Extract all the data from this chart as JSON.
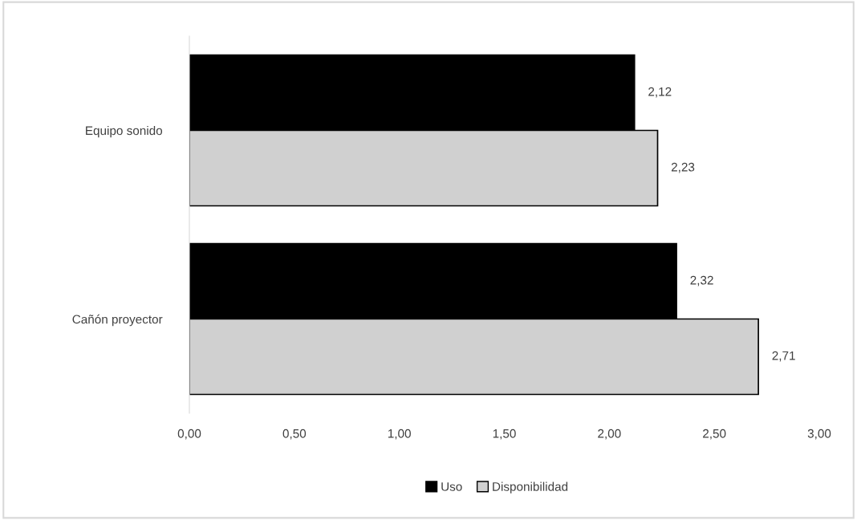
{
  "chart_data": {
    "type": "bar",
    "orientation": "horizontal",
    "categories": [
      "Equipo sonido",
      "Cañón proyector"
    ],
    "series": [
      {
        "name": "Uso",
        "color": "#000000",
        "values": [
          2.12,
          2.32
        ],
        "value_labels": [
          "2,12",
          "2,32"
        ]
      },
      {
        "name": "Disponibilidad",
        "color": "#d0d0d0",
        "values": [
          2.23,
          2.71
        ],
        "value_labels": [
          "2,23",
          "2,71"
        ]
      }
    ],
    "xlim": [
      0,
      3
    ],
    "xticks": [
      {
        "value": 0,
        "label": "0,00"
      },
      {
        "value": 0.5,
        "label": "0,50"
      },
      {
        "value": 1,
        "label": "1,00"
      },
      {
        "value": 1.5,
        "label": "1,50"
      },
      {
        "value": 2,
        "label": "2,00"
      },
      {
        "value": 2.5,
        "label": "2,50"
      },
      {
        "value": 3,
        "label": "3,00"
      }
    ],
    "grid": false,
    "legend": "bottom"
  }
}
